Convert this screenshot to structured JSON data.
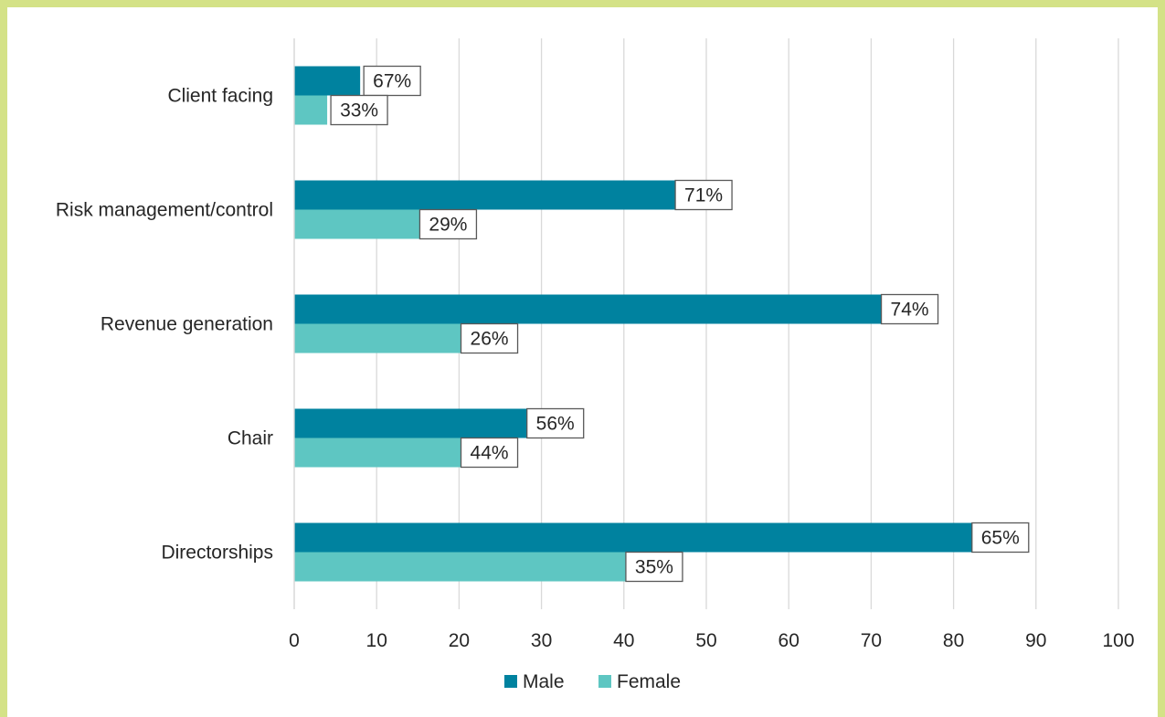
{
  "chart_data": {
    "type": "bar",
    "orientation": "horizontal",
    "categories": [
      "Client facing",
      "Risk management/control",
      "Revenue generation",
      "Chair",
      "Directorships"
    ],
    "series": [
      {
        "name": "Male",
        "color": "#00829f",
        "values": [
          8,
          53,
          78,
          35,
          89
        ],
        "labels": [
          "67%",
          "71%",
          "74%",
          "56%",
          "65%"
        ]
      },
      {
        "name": "Female",
        "color": "#5ec6c2",
        "values": [
          4,
          22,
          27,
          27,
          47
        ],
        "labels": [
          "33%",
          "29%",
          "26%",
          "44%",
          "35%"
        ]
      }
    ],
    "xlim": [
      0,
      100
    ],
    "xticks": [
      0,
      10,
      20,
      30,
      40,
      50,
      60,
      70,
      80,
      90,
      100
    ],
    "grid": true,
    "legend_position": "bottom",
    "border_color": "#d4e287",
    "grid_color": "#d9d9d9"
  }
}
